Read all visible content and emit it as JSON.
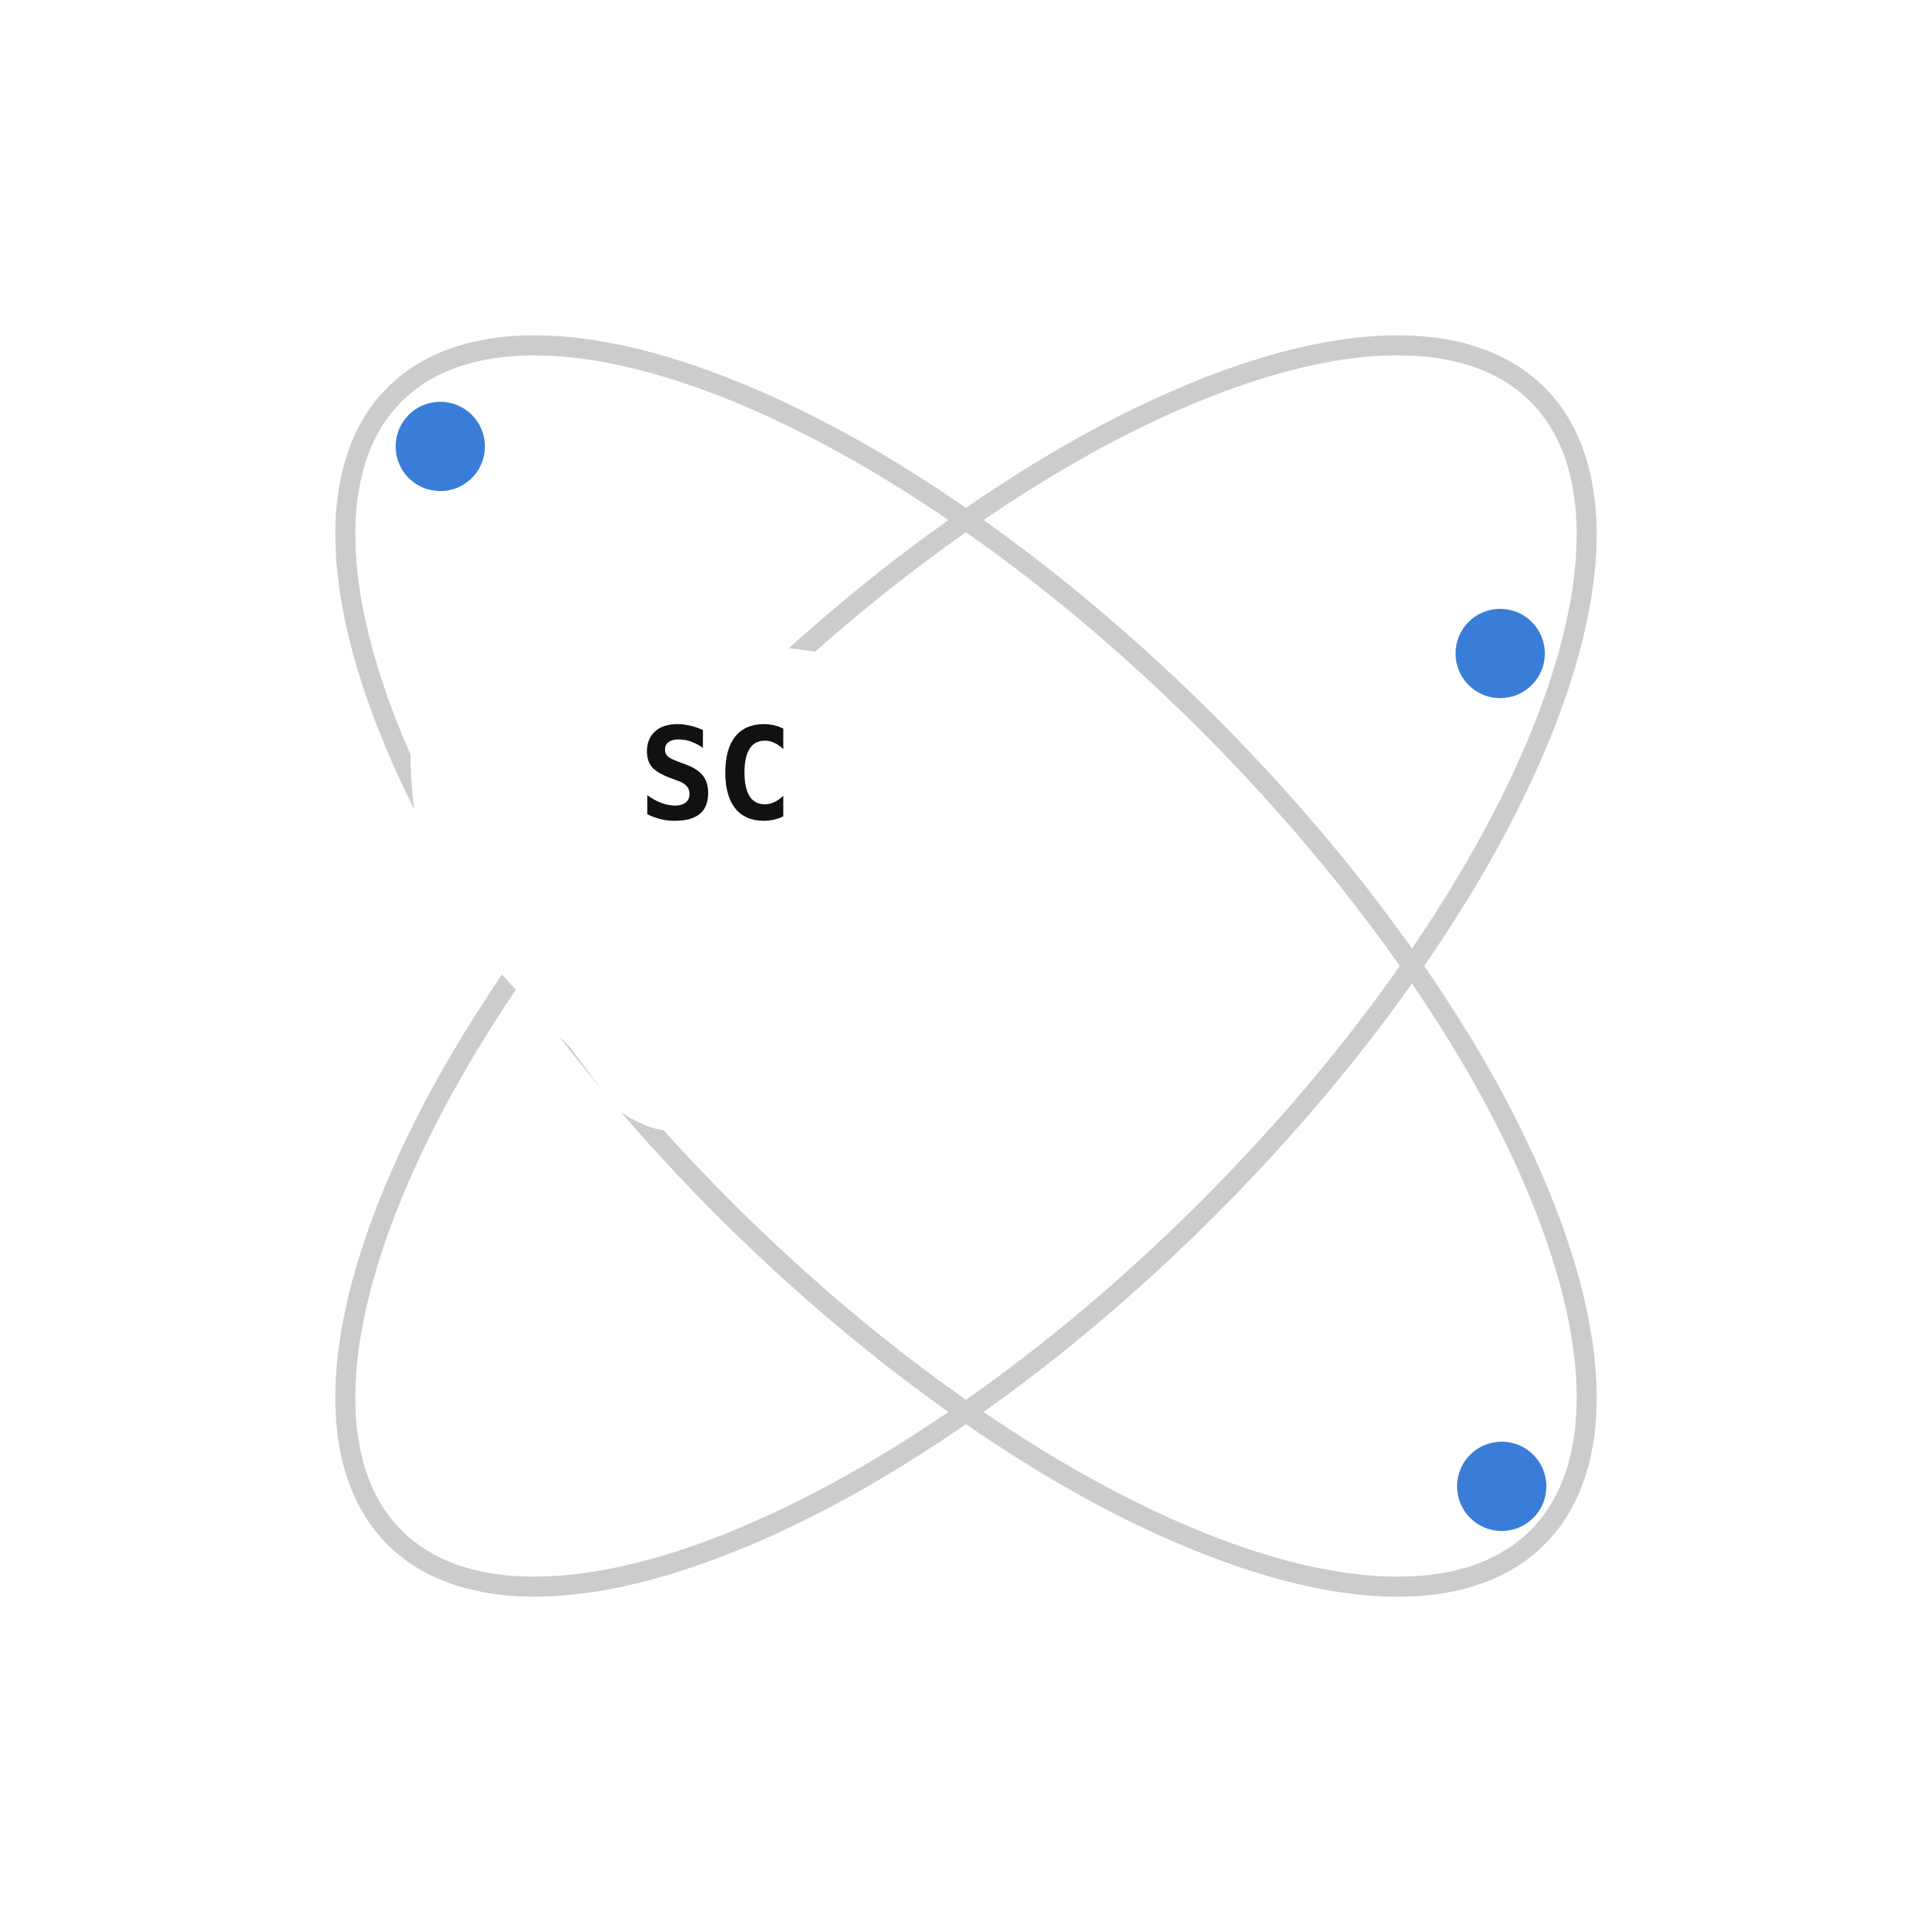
{
  "logo": {
    "monogram": "SC",
    "colors": {
      "background": "#ffffff",
      "orbit": "#cccccc",
      "electron": "#3a7dd8",
      "monogram": "#111111",
      "mask": "#ffffff"
    },
    "elements": {
      "orbit_count": 2,
      "electron_count": 3
    }
  }
}
